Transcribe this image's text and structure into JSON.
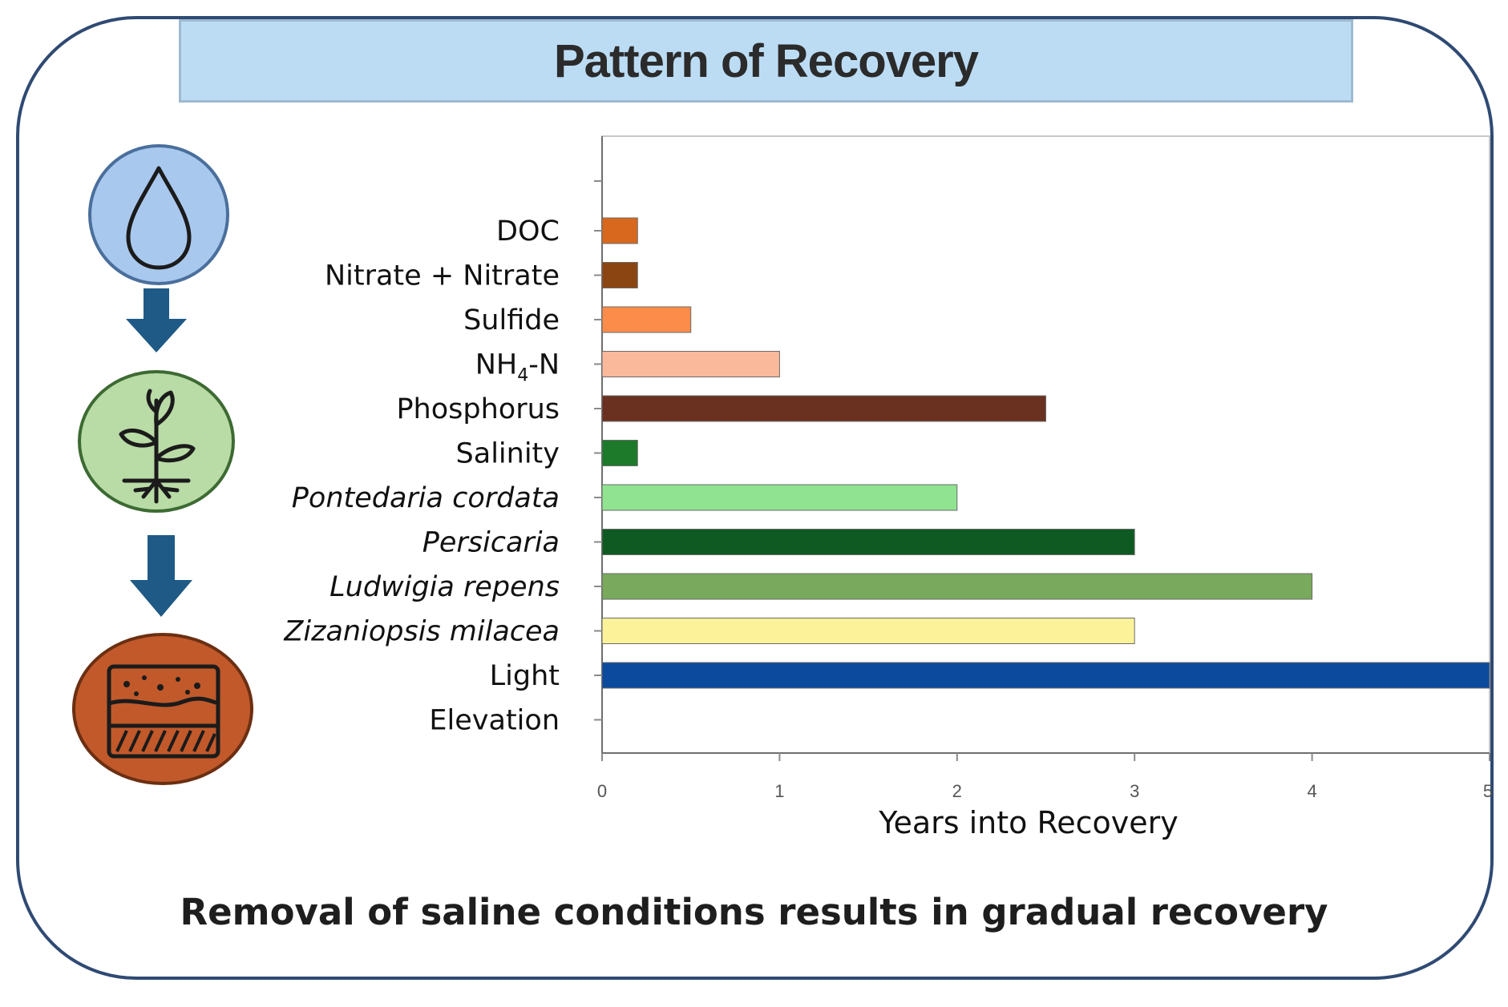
{
  "title": "Pattern of Recovery",
  "caption": "Removal of saline conditions results in gradual recovery",
  "icons": [
    "water-drop-icon",
    "plant-icon",
    "soil-layers-icon",
    "down-arrow-icon"
  ],
  "colors": {
    "frame": "#2f4a73",
    "title_bg": "#bcdcf4",
    "water_circle": "#a9c8ee",
    "plant_circle": "#b9dba6",
    "soil_circle": "#c1592a",
    "arrow": "#1f5a86"
  },
  "chart_data": {
    "type": "bar",
    "orientation": "horizontal",
    "title": "",
    "xlabel": "Years into Recovery",
    "ylabel": "",
    "xlim": [
      0,
      5
    ],
    "xticks": [
      0,
      1,
      2,
      3,
      4,
      5
    ],
    "grid": false,
    "categories": [
      {
        "label": "DOC",
        "label_sub": "",
        "label_suffix": "",
        "italic": false,
        "value": 0.2,
        "color": "#d8681e"
      },
      {
        "label": "Nitrate + Nitrate",
        "label_sub": "",
        "label_suffix": "",
        "italic": false,
        "value": 0.2,
        "color": "#8b4513"
      },
      {
        "label": "Sulfide",
        "label_sub": "",
        "label_suffix": "",
        "italic": false,
        "value": 0.5,
        "color": "#fb8c4a"
      },
      {
        "label": "NH",
        "label_sub": "4",
        "label_suffix": "-N",
        "italic": false,
        "value": 1.0,
        "color": "#fbb99c"
      },
      {
        "label": "Phosphorus",
        "label_sub": "",
        "label_suffix": "",
        "italic": false,
        "value": 2.5,
        "color": "#6a3020"
      },
      {
        "label": "Salinity",
        "label_sub": "",
        "label_suffix": "",
        "italic": false,
        "value": 0.2,
        "color": "#1c7a2a"
      },
      {
        "label": "Pontedaria cordata",
        "label_sub": "",
        "label_suffix": "",
        "italic": true,
        "value": 2.0,
        "color": "#8fe391"
      },
      {
        "label": "Persicaria",
        "label_sub": "",
        "label_suffix": "",
        "italic": true,
        "value": 3.0,
        "color": "#0f5a22"
      },
      {
        "label": "Ludwigia repens",
        "label_sub": "",
        "label_suffix": "",
        "italic": true,
        "value": 4.0,
        "color": "#79a95c"
      },
      {
        "label": "Zizaniopsis milacea",
        "label_sub": "",
        "label_suffix": "",
        "italic": true,
        "value": 3.0,
        "color": "#fbf29a"
      },
      {
        "label": "Light",
        "label_sub": "",
        "label_suffix": "",
        "italic": false,
        "value": 5.0,
        "color": "#0b4a9c"
      },
      {
        "label": "Elevation",
        "label_sub": "",
        "label_suffix": "",
        "italic": false,
        "value": null,
        "color": ""
      }
    ]
  }
}
